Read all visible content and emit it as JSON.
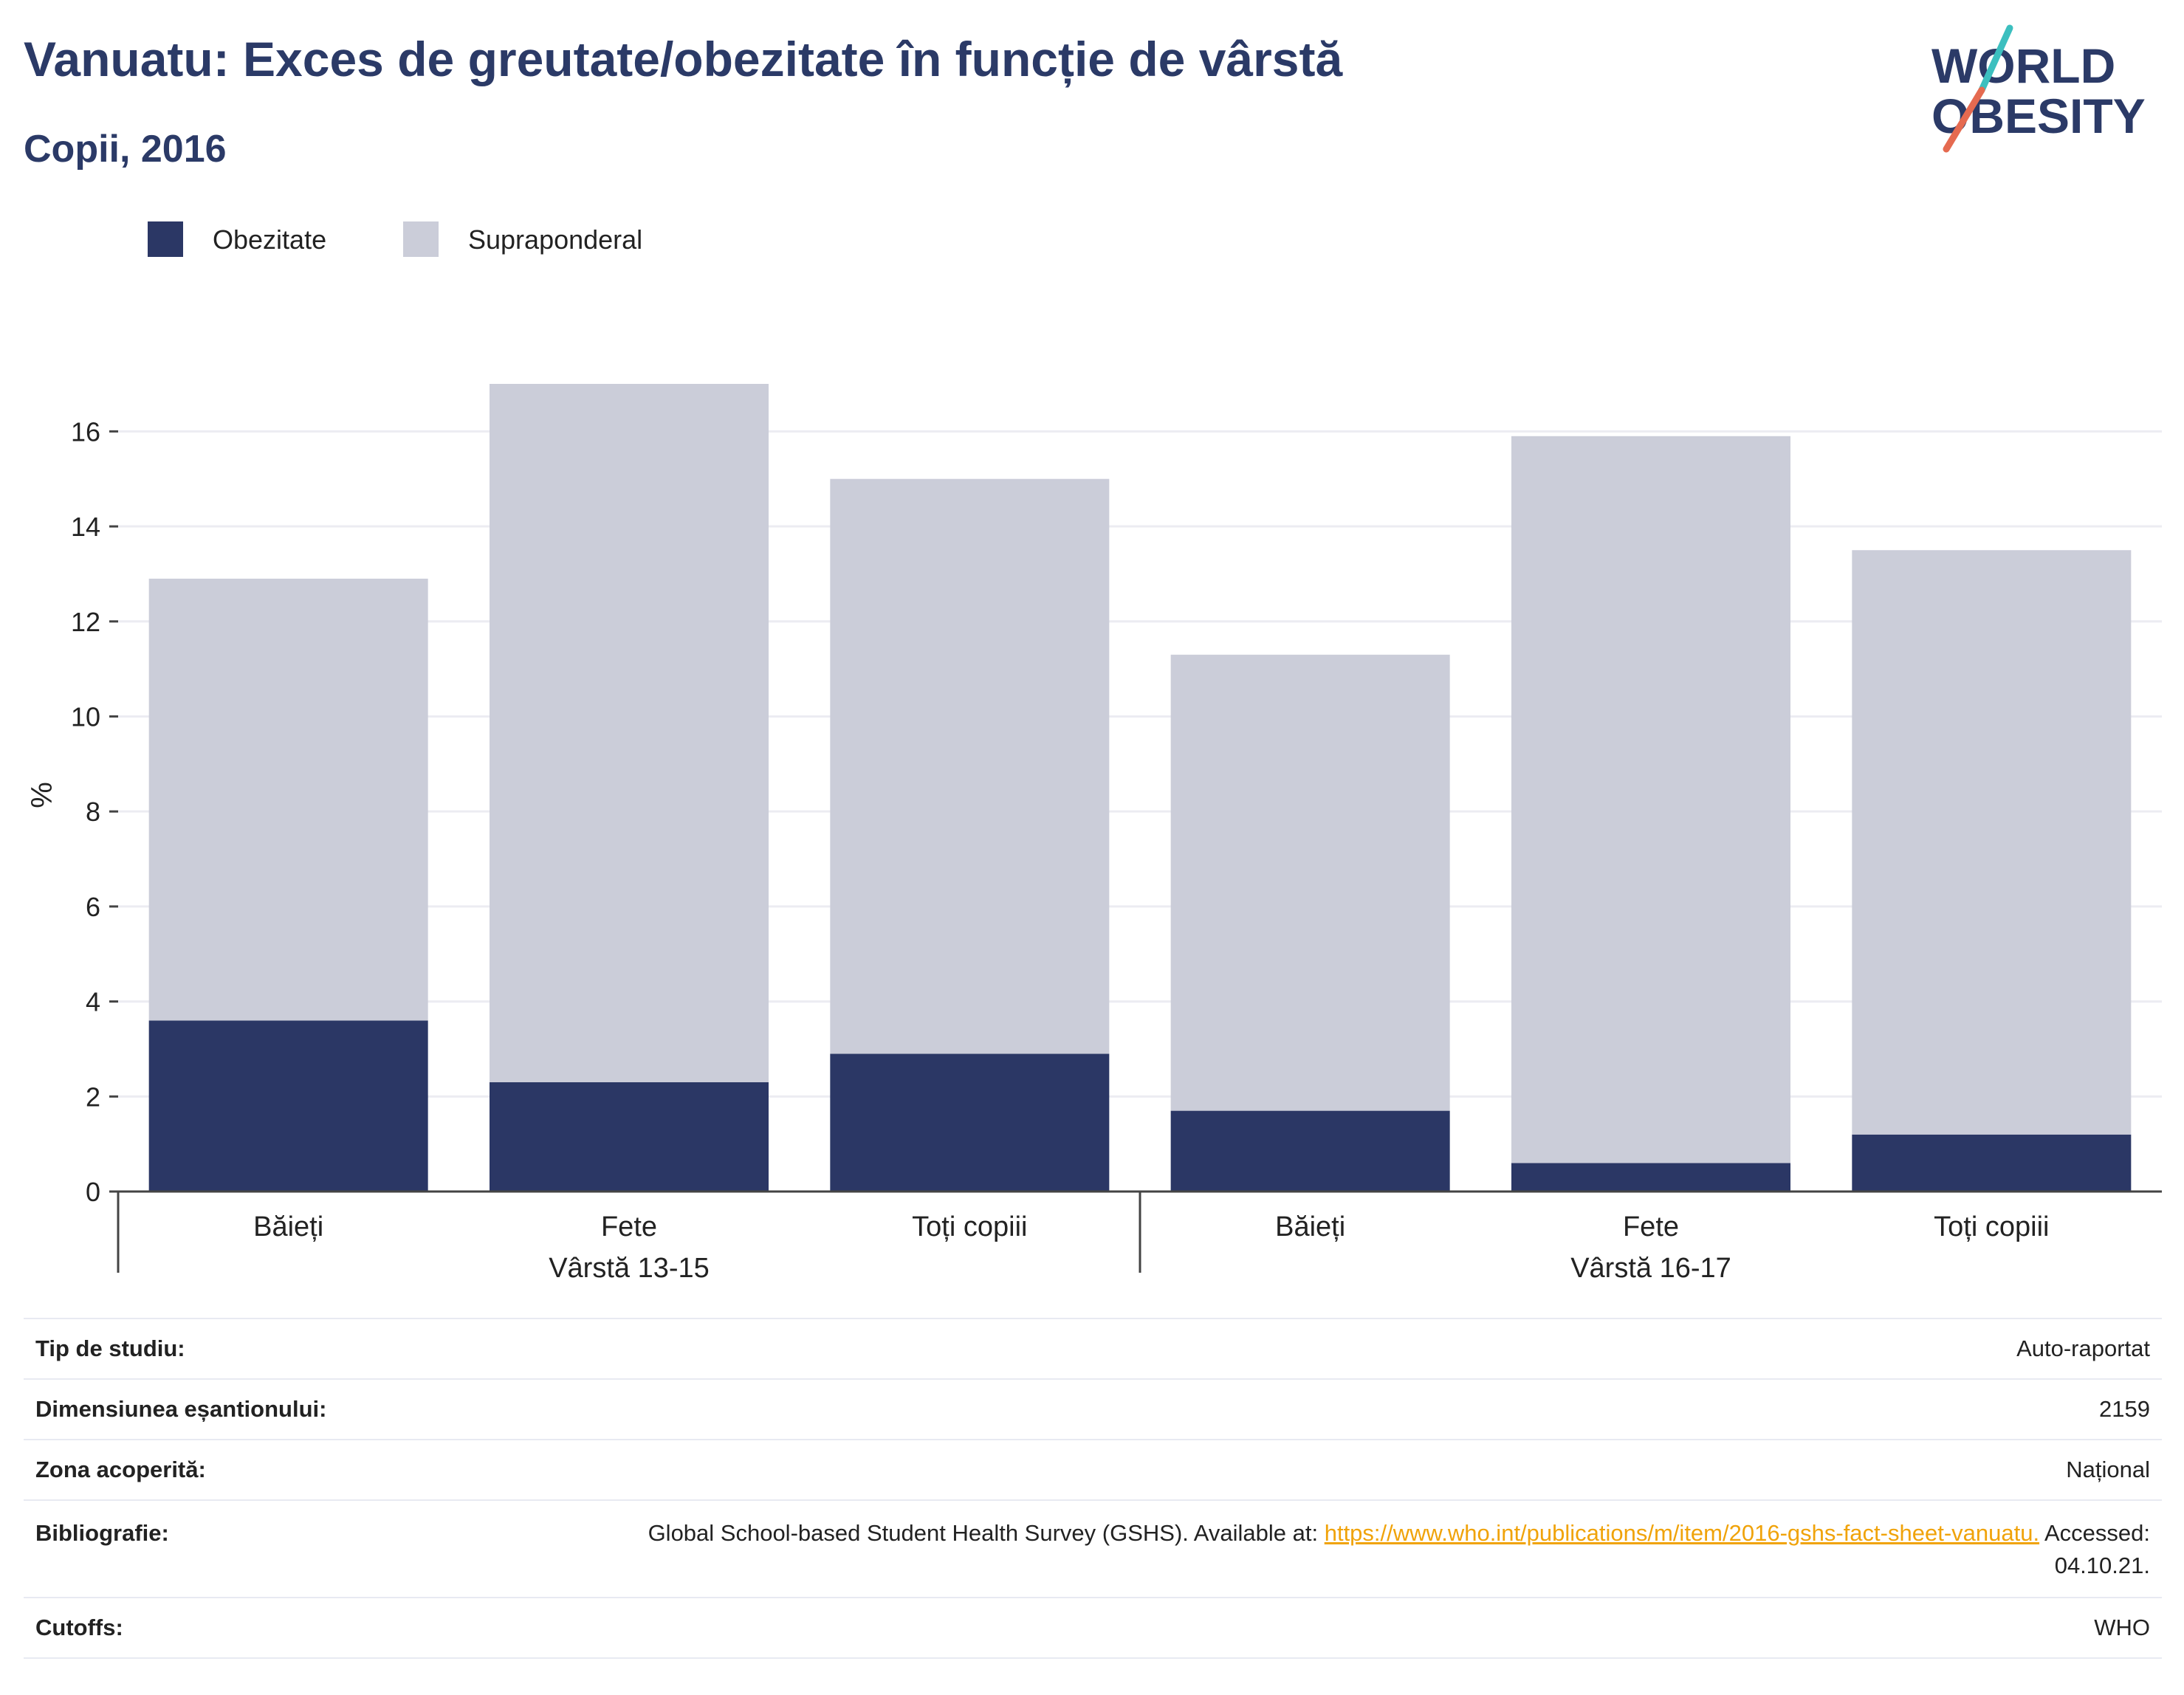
{
  "title": "Vanuatu: Exces de greutate/obezitate în funcție de vârstă",
  "subtitle": "Copii, 2016",
  "logo": {
    "line1": "WORLD",
    "line2": "OBESITY"
  },
  "colors": {
    "obesity": "#2b3765",
    "overweight": "#cbcdd9",
    "title": "#2b3a67",
    "link": "#f0a30a",
    "grid": "#ececf2"
  },
  "chart_data": {
    "type": "bar",
    "stacked": true,
    "ylabel": "%",
    "ylim": [
      0,
      17
    ],
    "yticks": [
      0,
      2,
      4,
      6,
      8,
      10,
      12,
      14,
      16
    ],
    "legend": {
      "placement": "top-left"
    },
    "grid": true,
    "groups": [
      {
        "label": "Vârstă 13-15",
        "categories": [
          "Băieți",
          "Fete",
          "Toți copiii"
        ]
      },
      {
        "label": "Vârstă 16-17",
        "categories": [
          "Băieți",
          "Fete",
          "Toți copiii"
        ]
      }
    ],
    "categories": [
      "Băieți",
      "Fete",
      "Toți copiii",
      "Băieți",
      "Fete",
      "Toți copiii"
    ],
    "series": [
      {
        "name": "Obezitate",
        "color": "#2b3765",
        "values": [
          3.6,
          2.3,
          2.9,
          1.7,
          0.6,
          1.2
        ]
      },
      {
        "name": "Supraponderal",
        "color": "#cbcdd9",
        "values": [
          9.3,
          14.7,
          12.1,
          9.6,
          15.3,
          12.3
        ]
      }
    ]
  },
  "info": [
    {
      "label": "Tip de studiu:",
      "value": "Auto-raportat"
    },
    {
      "label": "Dimensiunea eșantionului:",
      "value": "2159"
    },
    {
      "label": "Zona acoperită:",
      "value": "Național"
    },
    {
      "label": "Bibliografie:",
      "value_prefix": "Global School-based Student Health Survey (GSHS). Available at: ",
      "link": "https://www.who.int/publications/m/item/2016-gshs-fact-sheet-vanuatu.",
      "value_suffix": " Accessed: 04.10.21."
    },
    {
      "label": "Cutoffs:",
      "value": "WHO"
    }
  ]
}
